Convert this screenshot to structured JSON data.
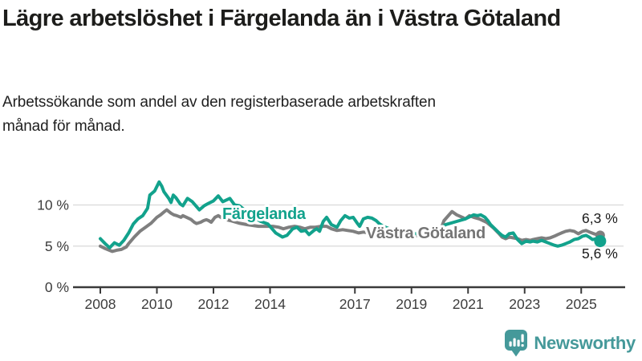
{
  "header": {
    "title": "Lägre arbetslöshet i Färgelanda än i Västra Götaland",
    "subtitle": "Arbetssökande som andel av den registerbaserade arbetskraften månad för månad."
  },
  "chart_data": {
    "type": "line",
    "unit": "%",
    "x_range": [
      2008,
      2025.75
    ],
    "ylim": [
      0,
      13.5
    ],
    "grid": true,
    "grid_values": [
      5,
      10
    ],
    "x_ticks": [
      2008,
      2010,
      2012,
      2014,
      2017,
      2019,
      2021,
      2023,
      2025
    ],
    "y_ticks": [
      {
        "value": 0,
        "label": "0 %"
      },
      {
        "value": 5,
        "label": "5 %"
      },
      {
        "value": 10,
        "label": "10 %"
      }
    ],
    "legend_position": "inline-labels",
    "series": [
      {
        "name": "Färgelanda",
        "color": "#12a28c",
        "end_label": "5,6 %",
        "last_value": 5.6,
        "points": [
          [
            2008.0,
            5.9
          ],
          [
            2008.17,
            5.3
          ],
          [
            2008.33,
            4.8
          ],
          [
            2008.5,
            5.4
          ],
          [
            2008.67,
            5.1
          ],
          [
            2008.83,
            5.7
          ],
          [
            2009.0,
            6.6
          ],
          [
            2009.17,
            7.7
          ],
          [
            2009.33,
            8.3
          ],
          [
            2009.5,
            8.7
          ],
          [
            2009.67,
            9.6
          ],
          [
            2009.75,
            11.2
          ],
          [
            2009.92,
            11.7
          ],
          [
            2010.08,
            12.8
          ],
          [
            2010.17,
            12.3
          ],
          [
            2010.25,
            11.6
          ],
          [
            2010.42,
            10.8
          ],
          [
            2010.5,
            10.3
          ],
          [
            2010.58,
            11.2
          ],
          [
            2010.67,
            10.9
          ],
          [
            2010.83,
            10.1
          ],
          [
            2010.92,
            9.9
          ],
          [
            2011.08,
            10.8
          ],
          [
            2011.25,
            10.4
          ],
          [
            2011.5,
            9.4
          ],
          [
            2011.67,
            9.9
          ],
          [
            2011.83,
            10.2
          ],
          [
            2012.0,
            10.5
          ],
          [
            2012.17,
            11.1
          ],
          [
            2012.33,
            10.4
          ],
          [
            2012.58,
            10.8
          ],
          [
            2012.75,
            10.0
          ],
          [
            2012.92,
            9.9
          ],
          [
            2013.17,
            9.2
          ],
          [
            2013.42,
            8.5
          ],
          [
            2013.67,
            8.0
          ],
          [
            2013.92,
            7.7
          ],
          [
            2014.2,
            6.6
          ],
          [
            2014.44,
            6.1
          ],
          [
            2014.6,
            6.3
          ],
          [
            2014.8,
            7.1
          ],
          [
            2014.95,
            7.3
          ],
          [
            2015.1,
            6.8
          ],
          [
            2015.25,
            6.9
          ],
          [
            2015.38,
            6.4
          ],
          [
            2015.55,
            6.9
          ],
          [
            2015.65,
            7.1
          ],
          [
            2015.75,
            6.8
          ],
          [
            2015.88,
            8.0
          ],
          [
            2016.0,
            8.5
          ],
          [
            2016.17,
            7.6
          ],
          [
            2016.37,
            7.3
          ],
          [
            2016.5,
            8.1
          ],
          [
            2016.65,
            8.7
          ],
          [
            2016.8,
            8.4
          ],
          [
            2016.94,
            8.5
          ],
          [
            2017.08,
            7.8
          ],
          [
            2017.17,
            7.4
          ],
          [
            2017.3,
            8.3
          ],
          [
            2017.45,
            8.5
          ],
          [
            2017.6,
            8.4
          ],
          [
            2017.75,
            8.1
          ],
          [
            2017.87,
            7.7
          ],
          [
            2018.0,
            7.4
          ],
          [
            2018.3,
            7.0
          ],
          [
            2018.7,
            6.7
          ],
          [
            2019.1,
            6.5
          ],
          [
            2019.5,
            6.5
          ],
          [
            2019.9,
            6.8
          ],
          [
            2020.2,
            7.6
          ],
          [
            2020.6,
            8.0
          ],
          [
            2020.9,
            8.3
          ],
          [
            2021.2,
            8.8
          ],
          [
            2021.33,
            8.7
          ],
          [
            2021.45,
            8.8
          ],
          [
            2021.6,
            8.5
          ],
          [
            2021.7,
            8.1
          ],
          [
            2021.8,
            7.6
          ],
          [
            2021.95,
            7.1
          ],
          [
            2022.1,
            6.6
          ],
          [
            2022.2,
            6.3
          ],
          [
            2022.33,
            6.1
          ],
          [
            2022.45,
            6.5
          ],
          [
            2022.6,
            6.6
          ],
          [
            2022.75,
            5.8
          ],
          [
            2022.9,
            5.3
          ],
          [
            2023.05,
            5.6
          ],
          [
            2023.2,
            5.5
          ],
          [
            2023.3,
            5.6
          ],
          [
            2023.45,
            5.5
          ],
          [
            2023.6,
            5.7
          ],
          [
            2023.75,
            5.5
          ],
          [
            2023.9,
            5.3
          ],
          [
            2024.05,
            5.1
          ],
          [
            2024.17,
            5.0
          ],
          [
            2024.3,
            5.1
          ],
          [
            2024.45,
            5.3
          ],
          [
            2024.6,
            5.5
          ],
          [
            2024.75,
            5.8
          ],
          [
            2024.9,
            5.9
          ],
          [
            2025.05,
            6.2
          ],
          [
            2025.17,
            6.3
          ],
          [
            2025.28,
            6.1
          ],
          [
            2025.4,
            5.8
          ],
          [
            2025.55,
            5.9
          ],
          [
            2025.67,
            5.6
          ]
        ]
      },
      {
        "name": "Västra Götaland",
        "color": "#7f7f7f",
        "end_label": "6,3 %",
        "last_value": 6.3,
        "points": [
          [
            2008.0,
            5.0
          ],
          [
            2008.17,
            4.7
          ],
          [
            2008.42,
            4.35
          ],
          [
            2008.58,
            4.5
          ],
          [
            2008.75,
            4.6
          ],
          [
            2008.92,
            4.9
          ],
          [
            2009.0,
            5.3
          ],
          [
            2009.2,
            6.1
          ],
          [
            2009.4,
            6.8
          ],
          [
            2009.6,
            7.3
          ],
          [
            2009.8,
            7.8
          ],
          [
            2010.0,
            8.5
          ],
          [
            2010.13,
            8.8
          ],
          [
            2010.27,
            9.2
          ],
          [
            2010.35,
            9.4
          ],
          [
            2010.5,
            9.0
          ],
          [
            2010.6,
            8.8
          ],
          [
            2010.7,
            8.7
          ],
          [
            2010.85,
            8.5
          ],
          [
            2010.92,
            8.7
          ],
          [
            2011.05,
            8.5
          ],
          [
            2011.2,
            8.25
          ],
          [
            2011.32,
            7.9
          ],
          [
            2011.4,
            7.75
          ],
          [
            2011.55,
            7.9
          ],
          [
            2011.65,
            8.1
          ],
          [
            2011.75,
            8.2
          ],
          [
            2011.83,
            8.1
          ],
          [
            2011.92,
            7.9
          ],
          [
            2012.05,
            8.5
          ],
          [
            2012.17,
            8.7
          ],
          [
            2012.35,
            8.3
          ],
          [
            2012.6,
            8.1
          ],
          [
            2012.9,
            7.8
          ],
          [
            2013.2,
            7.6
          ],
          [
            2013.6,
            7.4
          ],
          [
            2013.9,
            7.4
          ],
          [
            2014.1,
            7.4
          ],
          [
            2014.3,
            7.3
          ],
          [
            2014.47,
            7.1
          ],
          [
            2014.67,
            7.3
          ],
          [
            2014.87,
            7.4
          ],
          [
            2015.05,
            7.3
          ],
          [
            2015.23,
            7.1
          ],
          [
            2015.43,
            7.3
          ],
          [
            2015.6,
            7.3
          ],
          [
            2015.8,
            7.4
          ],
          [
            2016.0,
            7.4
          ],
          [
            2016.17,
            7.1
          ],
          [
            2016.37,
            6.9
          ],
          [
            2016.57,
            7.0
          ],
          [
            2016.75,
            6.9
          ],
          [
            2016.94,
            6.8
          ],
          [
            2017.13,
            6.6
          ],
          [
            2017.3,
            6.7
          ],
          [
            2017.5,
            6.6
          ],
          [
            2017.7,
            6.4
          ],
          [
            2017.87,
            6.5
          ],
          [
            2018.2,
            6.4
          ],
          [
            2018.6,
            6.3
          ],
          [
            2019.0,
            6.3
          ],
          [
            2019.5,
            6.2
          ],
          [
            2019.9,
            6.5
          ],
          [
            2020.05,
            7.2
          ],
          [
            2020.15,
            8.1
          ],
          [
            2020.43,
            9.2
          ],
          [
            2020.6,
            8.8
          ],
          [
            2020.8,
            8.5
          ],
          [
            2020.9,
            8.3
          ],
          [
            2021.05,
            8.7
          ],
          [
            2021.2,
            8.5
          ],
          [
            2021.4,
            8.3
          ],
          [
            2021.65,
            7.9
          ],
          [
            2021.9,
            7.2
          ],
          [
            2022.1,
            6.5
          ],
          [
            2022.2,
            6.1
          ],
          [
            2022.33,
            5.9
          ],
          [
            2022.45,
            6.1
          ],
          [
            2022.6,
            6.0
          ],
          [
            2022.75,
            5.9
          ],
          [
            2022.9,
            5.7
          ],
          [
            2023.05,
            5.8
          ],
          [
            2023.2,
            5.7
          ],
          [
            2023.3,
            5.8
          ],
          [
            2023.45,
            5.9
          ],
          [
            2023.6,
            6.0
          ],
          [
            2023.75,
            5.9
          ],
          [
            2023.9,
            6.0
          ],
          [
            2024.05,
            6.2
          ],
          [
            2024.17,
            6.4
          ],
          [
            2024.3,
            6.6
          ],
          [
            2024.45,
            6.8
          ],
          [
            2024.6,
            6.9
          ],
          [
            2024.75,
            6.8
          ],
          [
            2024.9,
            6.5
          ],
          [
            2025.05,
            6.8
          ],
          [
            2025.17,
            6.9
          ],
          [
            2025.3,
            6.7
          ],
          [
            2025.45,
            6.5
          ],
          [
            2025.67,
            6.3
          ]
        ]
      }
    ]
  },
  "footer": {
    "brand": "Newsworthy",
    "brand_color": "#45999a"
  }
}
